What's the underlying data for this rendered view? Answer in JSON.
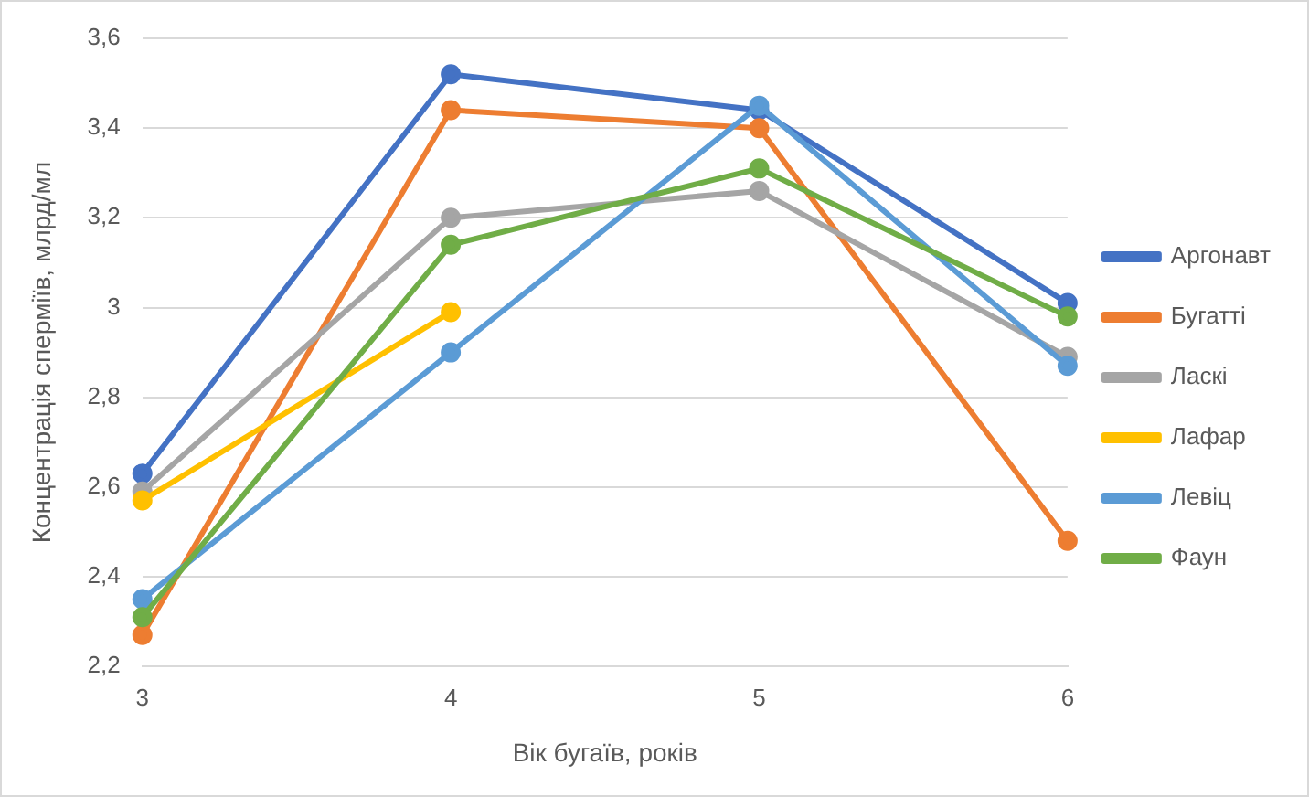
{
  "chart_data": {
    "type": "line",
    "xlabel": "Вік бугаїв, років",
    "ylabel": "Концентрація сперміїв, млрд/мл",
    "categories": [
      "3",
      "4",
      "5",
      "6"
    ],
    "series": [
      {
        "name": "Аргонавт",
        "color": "#4472c4",
        "values": [
          2.63,
          3.52,
          3.44,
          3.01
        ]
      },
      {
        "name": "Бугатті",
        "color": "#ed7d31",
        "values": [
          2.27,
          3.44,
          3.4,
          2.48
        ]
      },
      {
        "name": "Ласкі",
        "color": "#a5a5a5",
        "values": [
          2.59,
          3.2,
          3.26,
          2.89
        ]
      },
      {
        "name": "Лафар",
        "color": "#ffc000",
        "values": [
          2.57,
          2.99,
          null,
          null
        ]
      },
      {
        "name": "Левіц",
        "color": "#5b9bd5",
        "values": [
          2.35,
          2.9,
          3.45,
          2.87
        ]
      },
      {
        "name": "Фаун",
        "color": "#70ad47",
        "values": [
          2.31,
          3.14,
          3.31,
          2.98
        ]
      }
    ],
    "ylim": [
      2.2,
      3.6
    ],
    "yticks": [
      {
        "value": 2.2,
        "label": "2,2"
      },
      {
        "value": 2.4,
        "label": "2,4"
      },
      {
        "value": 2.6,
        "label": "2,6"
      },
      {
        "value": 2.8,
        "label": "2,8"
      },
      3,
      {
        "value": 3.2,
        "label": "3,2"
      },
      {
        "value": 3.4,
        "label": "3,4"
      },
      {
        "value": 3.6,
        "label": "3,6"
      }
    ],
    "grid": "y",
    "legend": "right",
    "marker": "circle",
    "line_style": "solid"
  }
}
